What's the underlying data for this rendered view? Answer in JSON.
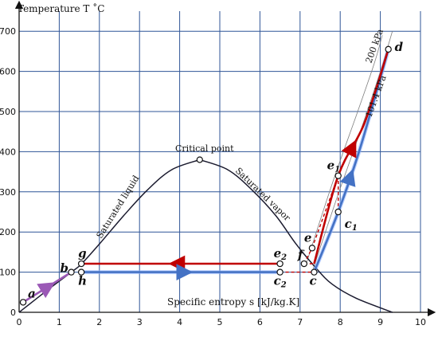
{
  "title": "",
  "axes": {
    "x_label": "Specific entropy s [kJ/kg.K]",
    "y_label": "Temperature T ˚C",
    "x_range": [
      0,
      10
    ],
    "y_range": [
      0,
      750
    ],
    "x_ticks": [
      0,
      1,
      2,
      3,
      4,
      5,
      6,
      7,
      8,
      9,
      10
    ],
    "y_ticks": [
      0,
      100,
      200,
      300,
      400,
      500,
      600,
      700
    ],
    "grid": true
  },
  "colors": {
    "grid": "#2f5597",
    "dome": "#1a1a2e",
    "hot_path": "#c00000",
    "cold_path": "#4472c4",
    "cold_glow": "#8fb3ff",
    "subcool_path": "#9b59b6",
    "dashed_red": "#c00000",
    "isobar": "#7f7f7f"
  },
  "saturation_dome": {
    "liquid_label": "Saturated liquid",
    "vapor_label": "Saturated vapor",
    "critical_label": "Critical point",
    "critical_point": {
      "s": 4.5,
      "T": 380
    },
    "liquid_curve": [
      [
        0,
        0
      ],
      [
        0.7,
        55
      ],
      [
        1.3,
        100
      ],
      [
        1.55,
        120
      ],
      [
        2.0,
        170
      ],
      [
        2.6,
        240
      ],
      [
        3.2,
        305
      ],
      [
        3.8,
        355
      ],
      [
        4.5,
        380
      ]
    ],
    "vapor_curve": [
      [
        4.5,
        380
      ],
      [
        5.2,
        355
      ],
      [
        5.8,
        305
      ],
      [
        6.4,
        240
      ],
      [
        6.9,
        170
      ],
      [
        7.4,
        110
      ],
      [
        7.8,
        70
      ],
      [
        8.4,
        35
      ],
      [
        9.3,
        0
      ]
    ]
  },
  "isobars": [
    {
      "label": "101.4 kPa",
      "points": [
        [
          7.3,
          100
        ],
        [
          7.9,
          280
        ],
        [
          8.5,
          450
        ],
        [
          9.0,
          600
        ],
        [
          9.3,
          700
        ]
      ]
    },
    {
      "label": "200 kPa",
      "points": [
        [
          7.15,
          120
        ],
        [
          7.8,
          320
        ],
        [
          8.4,
          490
        ],
        [
          8.85,
          620
        ],
        [
          9.05,
          690
        ]
      ]
    }
  ],
  "points": [
    {
      "id": "a",
      "s": 0.1,
      "T": 25,
      "label": "a",
      "sub": ""
    },
    {
      "id": "b",
      "s": 1.3,
      "T": 100,
      "label": "b",
      "sub": ""
    },
    {
      "id": "g",
      "s": 1.55,
      "T": 121,
      "label": "g",
      "sub": ""
    },
    {
      "id": "h",
      "s": 1.55,
      "T": 100,
      "label": "h",
      "sub": ""
    },
    {
      "id": "c2",
      "s": 6.5,
      "T": 100,
      "label": "c",
      "sub": "2"
    },
    {
      "id": "e2",
      "s": 6.5,
      "T": 121,
      "label": "e",
      "sub": "2"
    },
    {
      "id": "f",
      "s": 7.1,
      "T": 121,
      "label": "f",
      "sub": ""
    },
    {
      "id": "e",
      "s": 7.3,
      "T": 160,
      "label": "e",
      "sub": ""
    },
    {
      "id": "c",
      "s": 7.35,
      "T": 100,
      "label": "c",
      "sub": ""
    },
    {
      "id": "c1",
      "s": 7.95,
      "T": 250,
      "label": "c",
      "sub": "1"
    },
    {
      "id": "e1",
      "s": 7.95,
      "T": 340,
      "label": "e",
      "sub": "1"
    },
    {
      "id": "d",
      "s": 9.2,
      "T": 655,
      "label": "d",
      "sub": ""
    }
  ],
  "process_paths": [
    {
      "name": "subcooled-heating",
      "color": "subcool_path",
      "points": [
        [
          0.1,
          25
        ],
        [
          1.3,
          100
        ]
      ]
    },
    {
      "name": "condensation",
      "color": "hot_path",
      "points": [
        [
          6.5,
          121
        ],
        [
          1.55,
          121
        ]
      ]
    },
    {
      "name": "evaporation",
      "color": "cold_path",
      "points": [
        [
          1.55,
          100
        ],
        [
          6.5,
          100
        ]
      ]
    },
    {
      "name": "superheat-cold",
      "color": "cold_path",
      "points": [
        [
          7.35,
          100
        ],
        [
          7.95,
          250
        ],
        [
          8.5,
          410
        ],
        [
          9.2,
          655
        ]
      ]
    },
    {
      "name": "superheat-hot",
      "color": "hot_path",
      "points": [
        [
          7.35,
          121
        ],
        [
          7.95,
          340
        ],
        [
          8.6,
          470
        ],
        [
          9.2,
          655
        ]
      ]
    }
  ],
  "dashed_paths": [
    [
      [
        6.5,
        100
      ],
      [
        7.35,
        100
      ]
    ],
    [
      [
        7.1,
        121
      ],
      [
        7.35,
        121
      ]
    ],
    [
      [
        7.3,
        160
      ],
      [
        7.95,
        340
      ]
    ],
    [
      [
        7.95,
        250
      ],
      [
        7.95,
        340
      ]
    ],
    [
      [
        7.1,
        121
      ],
      [
        7.3,
        160
      ]
    ]
  ]
}
